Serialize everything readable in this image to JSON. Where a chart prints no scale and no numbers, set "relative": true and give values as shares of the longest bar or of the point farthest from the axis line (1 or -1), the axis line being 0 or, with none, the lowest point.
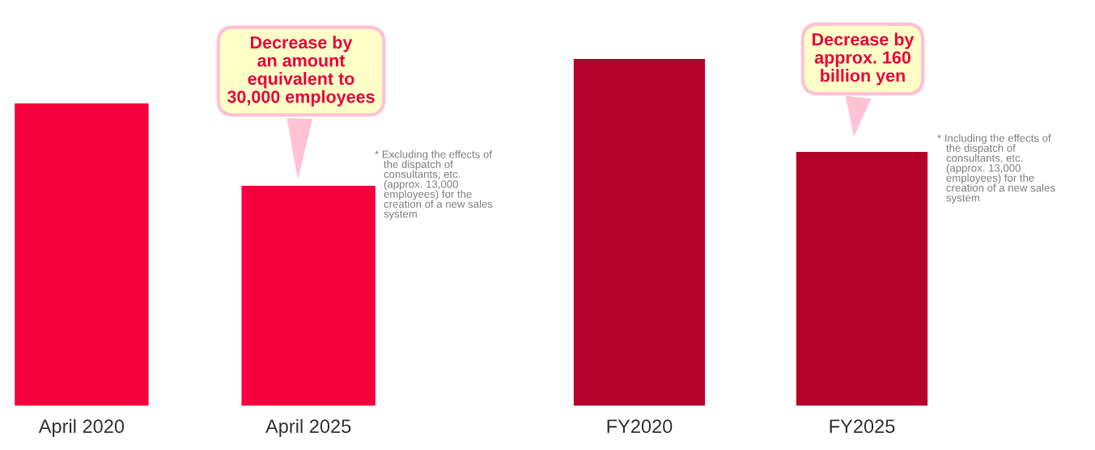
{
  "chart_data": [
    {
      "type": "bar",
      "relative": true,
      "tick_labels": "x",
      "categories": [
        "April 2020",
        "April 2025"
      ],
      "series": [
        {
          "color": "#f5003c",
          "values": [
            1,
            0.727
          ]
        }
      ],
      "annotations": [
        "Decrease by\nan amount\nequivalent to\n30,000 employees",
        "* Excluding the effects of\n   the dispatch of\n   consultants, etc.\n   (approx. 13,000\n   employees) for the\n   creation of a new sales\n   system"
      ]
    },
    {
      "type": "bar",
      "relative": true,
      "tick_labels": "x",
      "categories": [
        "FY2020",
        "FY2025"
      ],
      "series": [
        {
          "color": "#b5002a",
          "values": [
            1,
            0.732
          ]
        }
      ],
      "annotations": [
        "Decrease by\napprox. 160\nbillion yen",
        "* Including the effects of\n   the dispatch of\n   consultants, etc.\n   (approx. 13,000\n   employees) for the\n   creation of a new sales\n   system"
      ]
    }
  ]
}
